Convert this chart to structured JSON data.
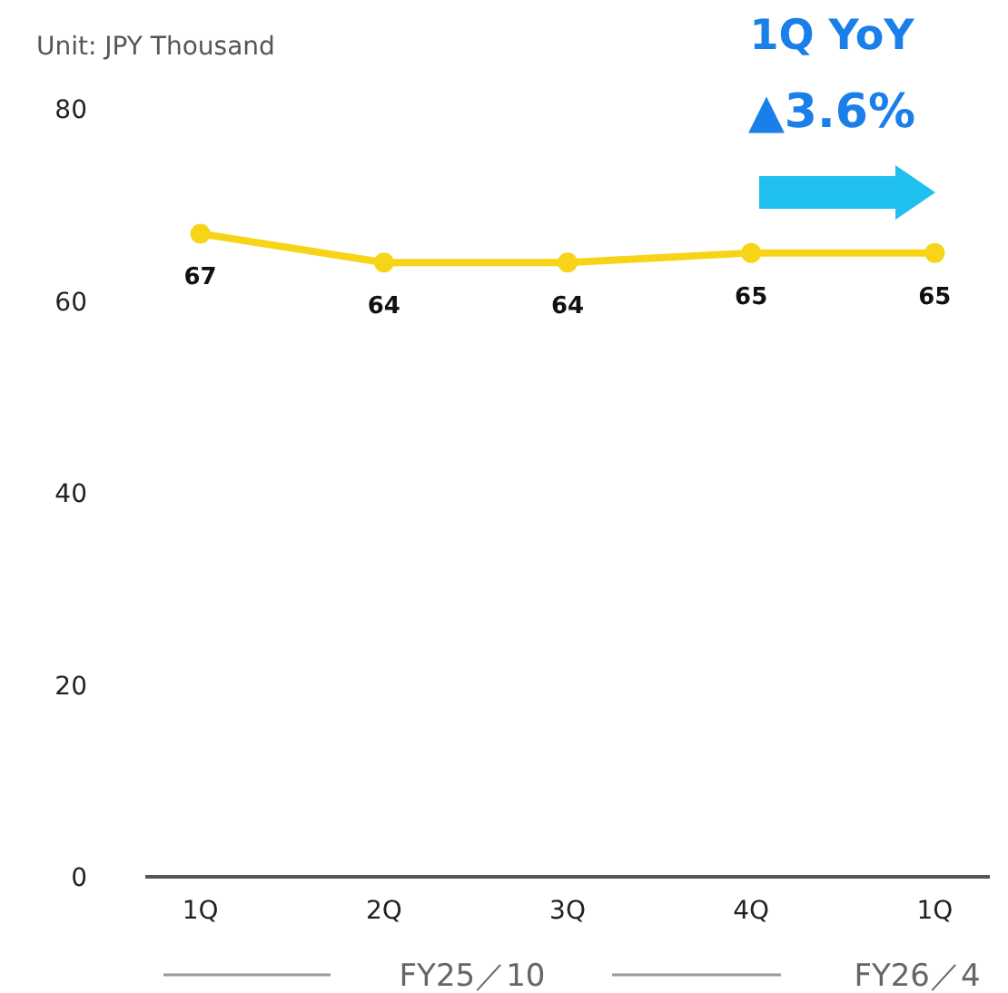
{
  "chart_data": {
    "type": "line",
    "categories": [
      "1Q",
      "2Q",
      "3Q",
      "4Q",
      "1Q"
    ],
    "series": [
      {
        "color": "#f7d417",
        "values": [
          67,
          64,
          64,
          65,
          65
        ]
      }
    ],
    "ylim": [
      0,
      80
    ],
    "yticks": [
      0,
      20,
      40,
      60,
      80
    ],
    "marker": "circle",
    "line_style": "solid",
    "data_labels": true,
    "annotations": [
      "Unit: JPY Thousand",
      "1Q YoY",
      "▲3.6%",
      "FY25／10",
      "FY26／4"
    ]
  }
}
